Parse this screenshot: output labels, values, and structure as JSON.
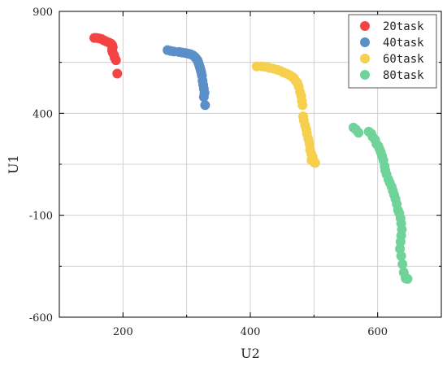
{
  "chart_data": {
    "type": "scatter",
    "xlabel": "U2",
    "ylabel": "U1",
    "xlim": [
      100,
      700
    ],
    "ylim": [
      -600,
      900
    ],
    "xticks": [
      200,
      400,
      600
    ],
    "yticks": [
      -600,
      -100,
      400,
      900
    ],
    "grid": true,
    "legend_position": "top-right",
    "series": [
      {
        "name": "20task",
        "color": "#f44343",
        "points": [
          [
            155,
            770
          ],
          [
            158,
            770
          ],
          [
            162,
            768
          ],
          [
            166,
            765
          ],
          [
            170,
            758
          ],
          [
            174,
            752
          ],
          [
            178,
            747
          ],
          [
            181,
            742
          ],
          [
            183,
            735
          ],
          [
            184,
            725
          ],
          [
            183,
            715
          ],
          [
            183,
            707
          ],
          [
            184,
            697
          ],
          [
            186,
            685
          ],
          [
            187,
            672
          ],
          [
            189,
            660
          ],
          [
            191,
            595
          ]
        ]
      },
      {
        "name": "40task",
        "color": "#5b8fc7",
        "points": [
          [
            270,
            710
          ],
          [
            275,
            706
          ],
          [
            280,
            703
          ],
          [
            288,
            701
          ],
          [
            293,
            698
          ],
          [
            298,
            696
          ],
          [
            302,
            693
          ],
          [
            306,
            690
          ],
          [
            310,
            684
          ],
          [
            313,
            676
          ],
          [
            315,
            668
          ],
          [
            317,
            660
          ],
          [
            318,
            652
          ],
          [
            319,
            643
          ],
          [
            320,
            633
          ],
          [
            321,
            623
          ],
          [
            322,
            612
          ],
          [
            323,
            600
          ],
          [
            324,
            585
          ],
          [
            325,
            560
          ],
          [
            326,
            540
          ],
          [
            327,
            520
          ],
          [
            328,
            500
          ],
          [
            329,
            440
          ],
          [
            327,
            480
          ]
        ]
      },
      {
        "name": "60task",
        "color": "#f7cf4f",
        "points": [
          [
            410,
            630
          ],
          [
            418,
            630
          ],
          [
            424,
            628
          ],
          [
            430,
            623
          ],
          [
            436,
            619
          ],
          [
            442,
            614
          ],
          [
            447,
            609
          ],
          [
            452,
            601
          ],
          [
            457,
            595
          ],
          [
            461,
            589
          ],
          [
            465,
            581
          ],
          [
            468,
            574
          ],
          [
            471,
            560
          ],
          [
            474,
            549
          ],
          [
            476,
            531
          ],
          [
            478,
            505
          ],
          [
            480,
            485
          ],
          [
            481,
            460
          ],
          [
            482,
            440
          ],
          [
            483,
            385
          ],
          [
            484,
            365
          ],
          [
            486,
            342
          ],
          [
            488,
            320
          ],
          [
            489,
            300
          ],
          [
            491,
            275
          ],
          [
            493,
            250
          ],
          [
            494,
            220
          ],
          [
            496,
            200
          ],
          [
            498,
            185
          ],
          [
            499,
            170
          ],
          [
            500,
            160
          ],
          [
            502,
            157
          ],
          [
            496,
            170
          ],
          [
            498,
            173
          ]
        ]
      },
      {
        "name": "80task",
        "color": "#6fd39a",
        "points": [
          [
            562,
            330
          ],
          [
            566,
            320
          ],
          [
            570,
            305
          ],
          [
            586,
            310
          ],
          [
            590,
            300
          ],
          [
            592,
            285
          ],
          [
            596,
            270
          ],
          [
            598,
            250
          ],
          [
            601,
            240
          ],
          [
            603,
            225
          ],
          [
            605,
            210
          ],
          [
            607,
            190
          ],
          [
            609,
            170
          ],
          [
            611,
            140
          ],
          [
            612,
            120
          ],
          [
            614,
            100
          ],
          [
            617,
            75
          ],
          [
            619,
            60
          ],
          [
            622,
            40
          ],
          [
            624,
            20
          ],
          [
            626,
            0
          ],
          [
            628,
            -20
          ],
          [
            630,
            -45
          ],
          [
            632,
            -75
          ],
          [
            634,
            -90
          ],
          [
            636,
            -115
          ],
          [
            637,
            -140
          ],
          [
            638,
            -170
          ],
          [
            637,
            -200
          ],
          [
            636,
            -230
          ],
          [
            635,
            -265
          ],
          [
            637,
            -300
          ],
          [
            639,
            -340
          ],
          [
            641,
            -380
          ],
          [
            644,
            -410
          ],
          [
            647,
            -412
          ],
          [
            644,
            -405
          ]
        ]
      }
    ]
  }
}
